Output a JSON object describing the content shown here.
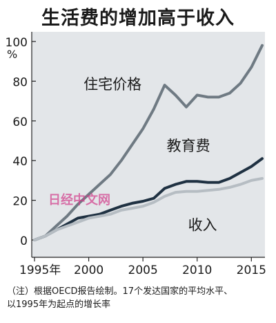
{
  "title": "生活费的增加高于收入",
  "note_line1": "（注）根据OECD报告绘制。17个发达国家的平均水平、",
  "note_line2": "以1995年为起点的增长率",
  "watermark": "日经中文网",
  "colors": {
    "plot_bg": "#e3e6e9",
    "housing": "#6f7a83",
    "education": "#1f3142",
    "income": "#b6bdc3"
  },
  "chart_data": {
    "type": "line",
    "title": "生活费的增加高于收入",
    "xlim": [
      1995,
      2016
    ],
    "ylim": [
      0,
      100
    ],
    "x_ticks": [
      {
        "value": 1995,
        "label": "1995年"
      },
      {
        "value": 2000,
        "label": "2000"
      },
      {
        "value": 2005,
        "label": "2005"
      },
      {
        "value": 2010,
        "label": "2010"
      },
      {
        "value": 2015,
        "label": "2015"
      }
    ],
    "y_ticks": [
      {
        "value": 0,
        "label": "0"
      },
      {
        "value": 20,
        "label": "20"
      },
      {
        "value": 40,
        "label": "40"
      },
      {
        "value": 60,
        "label": "60"
      },
      {
        "value": 80,
        "label": "80"
      },
      {
        "value": 100,
        "label": "100"
      }
    ],
    "y_unit": "%",
    "grid": false,
    "x": [
      1995,
      1996,
      1997,
      1998,
      1999,
      2000,
      2001,
      2002,
      2003,
      2004,
      2005,
      2006,
      2007,
      2008,
      2009,
      2010,
      2011,
      2012,
      2013,
      2014,
      2015,
      2016
    ],
    "series": [
      {
        "name": "住宅价格",
        "color_key": "housing",
        "values": [
          0,
          2,
          7,
          12,
          18,
          23,
          28,
          33,
          40,
          48,
          56,
          66,
          78,
          73,
          67,
          73,
          72,
          72,
          74,
          79,
          87,
          98
        ]
      },
      {
        "name": "教育费",
        "color_key": "education",
        "values": [
          0,
          2,
          5,
          8,
          11,
          12,
          13,
          15,
          17,
          18.5,
          19.5,
          21,
          26,
          28,
          29.5,
          29.5,
          29,
          29,
          31,
          34,
          37,
          41
        ]
      },
      {
        "name": "收入",
        "color_key": "income",
        "values": [
          0,
          2,
          5,
          7,
          9,
          11,
          12,
          13,
          15,
          16,
          17,
          19,
          22,
          24,
          24.5,
          24.5,
          25,
          25.5,
          26.5,
          28,
          30,
          31
        ]
      }
    ],
    "series_labels": [
      {
        "series": "住宅价格",
        "at": [
          2002.2,
          76
        ]
      },
      {
        "series": "教育费",
        "at": [
          2009.2,
          45
        ]
      },
      {
        "series": "收入",
        "at": [
          2010.5,
          5
        ]
      }
    ]
  }
}
